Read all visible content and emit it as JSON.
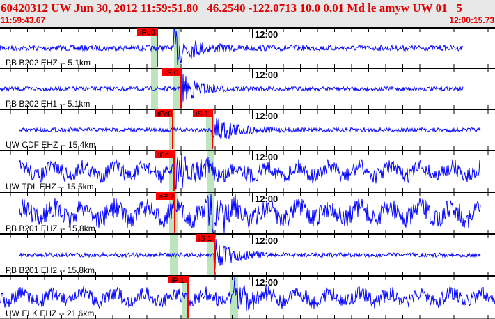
{
  "header": {
    "title": "60420312 UW Jun 30, 2012 11:59:51.80   46.2540 -122.0713 10.0 0.01 Md le amyw UW 01   5",
    "start_time": "11:59:43.67",
    "end_time": "12:00:15.73"
  },
  "time_marker": "12:00",
  "colors": {
    "trace": "#0000ff",
    "pick": "#ff0000",
    "window": "#bde5bd",
    "header_text": "#e00000"
  },
  "channels": [
    {
      "label": "PB B202 EHZ -- 5.1km",
      "picks": [
        "iPd0"
      ]
    },
    {
      "label": "PB B202 EH1 -- 5.1km",
      "picks": [
        "iS 0"
      ]
    },
    {
      "label": "UW CDF EHZ -- 15.4km",
      "picks": [
        "iPc0",
        "iS 1"
      ]
    },
    {
      "label": "UW TDL EHZ -- 15.5km",
      "picks": [
        "iPc1"
      ]
    },
    {
      "label": "PB B201 EHZ -- 15.8km",
      "picks": [
        "eP 2"
      ]
    },
    {
      "label": "PB B201 EH2 -- 15.8km",
      "picks": [
        "iS 1"
      ]
    },
    {
      "label": "UW ELK EHZ -- 21.6km",
      "picks": [
        "iP 1"
      ]
    }
  ]
}
